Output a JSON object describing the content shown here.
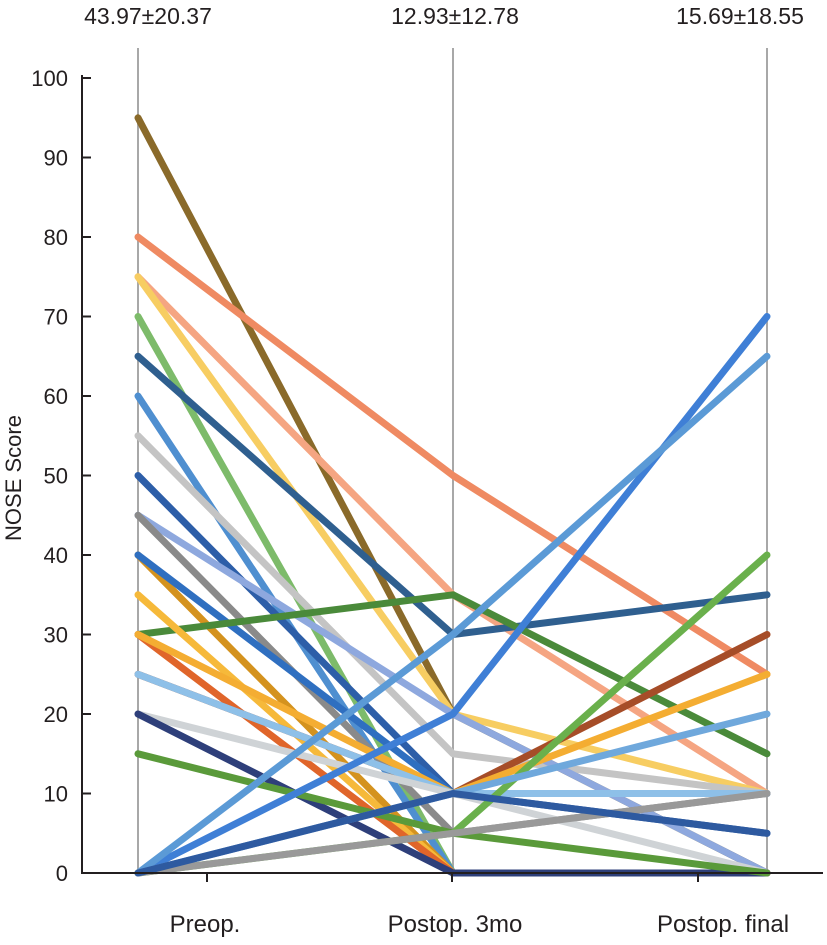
{
  "chart_data": {
    "type": "line",
    "title": "",
    "ylabel": "NOSE Score",
    "xlabel": "",
    "categories": [
      "Preop.",
      "Postop. 3mo",
      "Postop. final"
    ],
    "stats": [
      "43.97±20.37",
      "12.93±12.78",
      "15.69±18.55"
    ],
    "ylim": [
      0,
      100
    ],
    "yticks": [
      0,
      10,
      20,
      30,
      40,
      50,
      60,
      70,
      80,
      90,
      100
    ],
    "grid": "vertical lines at each category",
    "legend": "none",
    "series": [
      {
        "color": "#8a6a2a",
        "values": [
          95,
          20,
          0
        ]
      },
      {
        "color": "#ef8a62",
        "values": [
          80,
          50,
          25
        ]
      },
      {
        "color": "#f5a582",
        "values": [
          75,
          35,
          10
        ]
      },
      {
        "color": "#f7cd62",
        "values": [
          75,
          20,
          10
        ]
      },
      {
        "color": "#7dbb6a",
        "values": [
          70,
          0,
          0
        ]
      },
      {
        "color": "#2f5f8f",
        "values": [
          65,
          30,
          35
        ]
      },
      {
        "color": "#4f8fd0",
        "values": [
          60,
          0,
          0
        ]
      },
      {
        "color": "#c4c4c4",
        "values": [
          55,
          15,
          10
        ]
      },
      {
        "color": "#2d5ea8",
        "values": [
          50,
          10,
          5
        ]
      },
      {
        "color": "#8ea8de",
        "values": [
          45,
          20,
          0
        ]
      },
      {
        "color": "#8a8a8a",
        "values": [
          45,
          5,
          10
        ]
      },
      {
        "color": "#d4921e",
        "values": [
          40,
          0,
          0
        ]
      },
      {
        "color": "#2f6fc0",
        "values": [
          40,
          10,
          10
        ]
      },
      {
        "color": "#4a8a3a",
        "values": [
          30,
          35,
          15
        ]
      },
      {
        "color": "#f6b93a",
        "values": [
          35,
          0,
          0
        ]
      },
      {
        "color": "#e0652a",
        "values": [
          30,
          0,
          0
        ]
      },
      {
        "color": "#a64d28",
        "values": [
          25,
          10,
          30
        ]
      },
      {
        "color": "#f4ad32",
        "values": [
          30,
          10,
          25
        ]
      },
      {
        "color": "#8ec0e8",
        "values": [
          25,
          10,
          10
        ]
      },
      {
        "color": "#cfd3d6",
        "values": [
          20,
          10,
          0
        ]
      },
      {
        "color": "#2e3f7a",
        "values": [
          20,
          0,
          0
        ]
      },
      {
        "color": "#5a9a3a",
        "values": [
          15,
          5,
          0
        ]
      },
      {
        "color": "#3f7fd6",
        "values": [
          0,
          20,
          70
        ]
      },
      {
        "color": "#5b9ad6",
        "values": [
          0,
          30,
          65
        ]
      },
      {
        "color": "#6ab04c",
        "values": [
          0,
          5,
          40
        ]
      },
      {
        "color": "#6fa8dc",
        "values": [
          0,
          10,
          20
        ]
      },
      {
        "color": "#999999",
        "values": [
          0,
          5,
          10
        ]
      },
      {
        "color": "#2e5aa0",
        "values": [
          0,
          10,
          5
        ]
      }
    ]
  }
}
